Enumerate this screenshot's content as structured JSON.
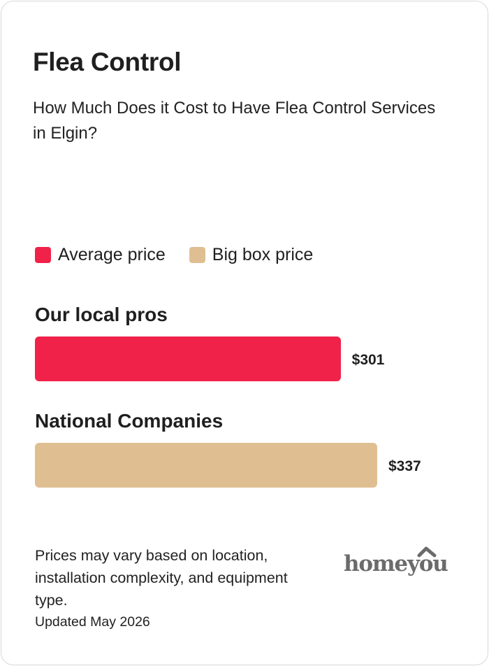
{
  "header": {
    "title": "Flea Control",
    "subtitle": "How Much Does it Cost to Have Flea Control Services in Elgin?"
  },
  "legend": [
    {
      "label": "Average price",
      "color": "#f0224a"
    },
    {
      "label": "Big box price",
      "color": "#dfbf92"
    }
  ],
  "chart_data": {
    "type": "bar",
    "orientation": "horizontal",
    "categories": [
      "Our local pros",
      "National Companies"
    ],
    "values": [
      301,
      337
    ],
    "value_labels": [
      "$301",
      "$337"
    ],
    "colors": [
      "#f0224a",
      "#dfbf92"
    ],
    "series": [
      {
        "name": "Average price",
        "values": [
          301,
          null
        ]
      },
      {
        "name": "Big box price",
        "values": [
          null,
          337
        ]
      }
    ],
    "title": "Flea Control",
    "xlabel": "",
    "ylabel": ""
  },
  "footer": {
    "note": "Prices may vary based on location, installation complexity, and equipment type.",
    "updated": "Updated May 2026",
    "logo_text": "homeyou",
    "logo_color": "#6b6b6b"
  }
}
